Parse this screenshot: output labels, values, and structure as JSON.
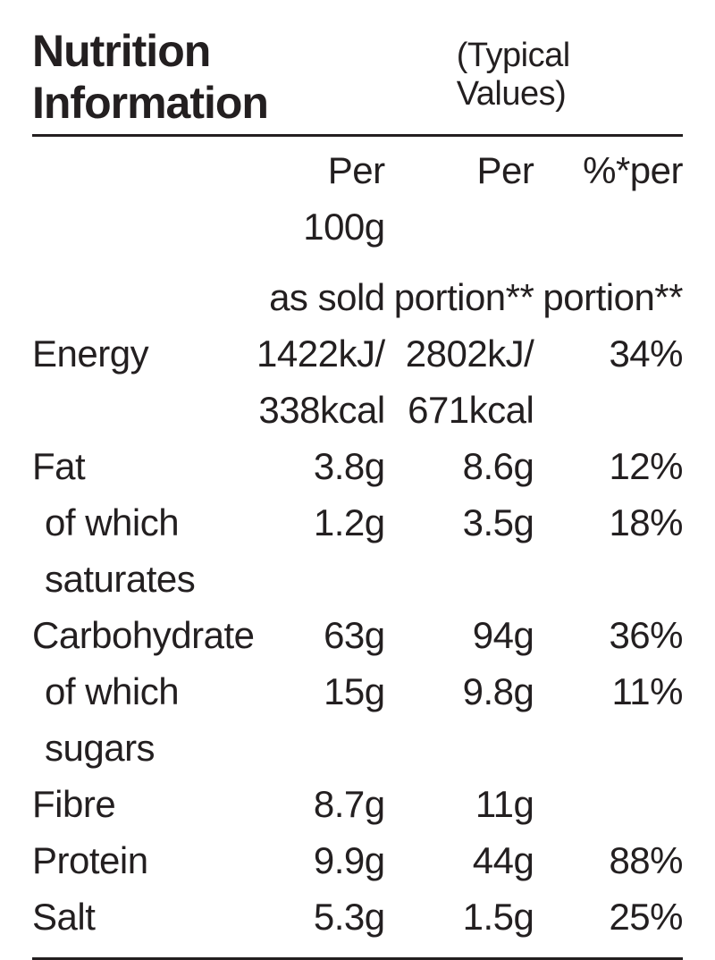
{
  "title": {
    "main": "Nutrition Information",
    "sub": "(Typical Values)"
  },
  "columns": {
    "label": "",
    "per100g_l1": "Per 100g",
    "per100g_l2": "as sold",
    "perportion_l1": "Per",
    "perportion_l2": "portion**",
    "pct_l1": "%*per",
    "pct_l2": "portion**"
  },
  "rows": [
    {
      "label": "Energy",
      "sub": false,
      "a_l1": "1422kJ/",
      "a_l2": "338kcal",
      "b_l1": "2802kJ/",
      "b_l2": "671kcal",
      "c": "34%"
    },
    {
      "label": "Fat",
      "sub": false,
      "a": "3.8g",
      "b": "8.6g",
      "c": "12%"
    },
    {
      "label": "of which saturates",
      "sub": true,
      "a": "1.2g",
      "b": "3.5g",
      "c": "18%"
    },
    {
      "label": "Carbohydrate",
      "sub": false,
      "a": "63g",
      "b": "94g",
      "c": "36%"
    },
    {
      "label": "of which sugars",
      "sub": true,
      "a": "15g",
      "b": "9.8g",
      "c": "11%"
    },
    {
      "label": "Fibre",
      "sub": false,
      "a": "8.7g",
      "b": "11g",
      "c": ""
    },
    {
      "label": "Protein",
      "sub": false,
      "a": "9.9g",
      "b": "44g",
      "c": "88%"
    },
    {
      "label": "Salt",
      "sub": false,
      "a": "5.3g",
      "b": "1.5g",
      "c": "25%"
    }
  ],
  "colors": {
    "text": "#231f20",
    "background": "#ffffff",
    "rule": "#231f20"
  },
  "typography": {
    "title_fontsize": 50,
    "subtitle_fontsize": 38,
    "body_fontsize": 42,
    "font_family": "Gill Sans"
  }
}
